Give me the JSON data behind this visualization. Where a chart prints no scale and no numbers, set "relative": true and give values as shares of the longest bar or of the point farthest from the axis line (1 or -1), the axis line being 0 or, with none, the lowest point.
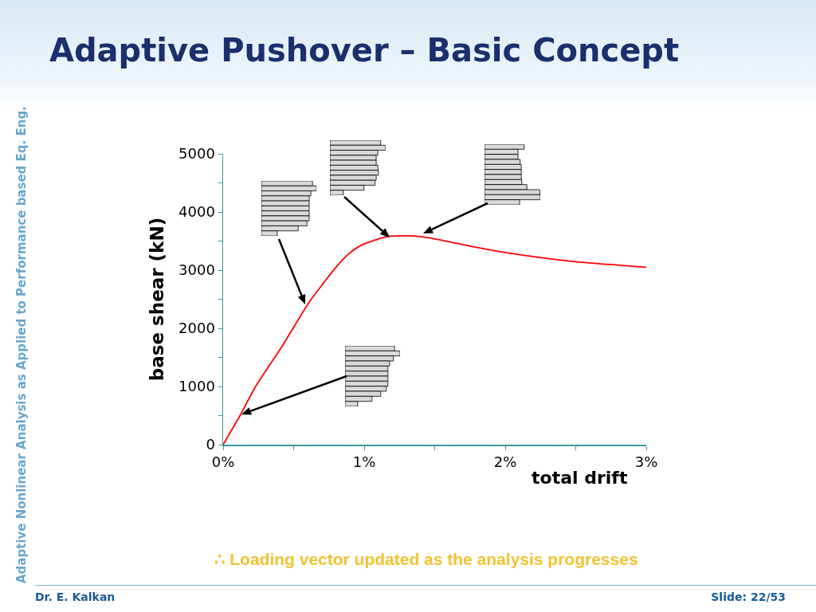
{
  "chart_data": [
    {
      "type": "line",
      "title": "Adaptive Pushover – Basic Concept",
      "xlabel": "total drift",
      "ylabel": "base shear (kN)",
      "x": [
        0,
        0.06,
        0.12,
        0.23,
        0.42,
        0.61,
        0.8,
        0.89,
        0.98,
        1.08,
        1.17,
        1.33,
        1.45,
        1.78,
        2.01,
        2.48,
        3.0
      ],
      "series": [
        {
          "color": "#ff0000",
          "values": [
            0,
            250,
            500,
            1000,
            1700,
            2450,
            3050,
            3280,
            3430,
            3520,
            3580,
            3590,
            3560,
            3400,
            3300,
            3150,
            3050
          ]
        }
      ],
      "xlim": [
        0,
        3
      ],
      "xticks": [
        {
          "value": 0,
          "label": "0%"
        },
        {
          "value": 0.5,
          "label": null
        },
        {
          "value": 1,
          "label": "1%"
        },
        {
          "value": 1.5,
          "label": null
        },
        {
          "value": 2,
          "label": "2%"
        },
        {
          "value": 2.5,
          "label": null
        },
        {
          "value": 3,
          "label": "3%"
        }
      ],
      "ylim": [
        0,
        5000
      ],
      "yticks": [
        0,
        {
          "value": 500,
          "label": null
        },
        1000,
        {
          "value": 1500,
          "label": null
        },
        2000,
        {
          "value": 2500,
          "label": null
        },
        3000,
        {
          "value": 3500,
          "label": null
        },
        4000,
        {
          "value": 4500,
          "label": null
        },
        5000
      ],
      "grid": false,
      "marker": "none",
      "line_style": "solid",
      "annotations": [
        "Adaptive Nonlinear Analysis as Applied to Performance based Eq. Eng.",
        "∴ Loading vector updated as the analysis progresses",
        "Dr. E. Kalkan",
        "Slide: 22/53"
      ]
    },
    {
      "type": "bar",
      "orientation": "horizontal",
      "relative": true,
      "color": "#d9d9d9",
      "categories": [
        null,
        null,
        null,
        null,
        null,
        null,
        null,
        null,
        null,
        null,
        null
      ],
      "values": [
        0.91,
        1,
        0.86,
        0.83,
        0.83,
        0.86,
        0.87,
        0.83,
        0.81,
        0.61,
        0.24
      ]
    },
    {
      "type": "bar",
      "orientation": "horizontal",
      "relative": true,
      "color": "#d9d9d9",
      "categories": [
        null,
        null,
        null,
        null,
        null,
        null,
        null,
        null,
        null,
        null,
        null,
        null
      ],
      "values": [
        0.71,
        0.6,
        0.6,
        0.64,
        0.66,
        0.66,
        0.66,
        0.67,
        0.76,
        0.99,
        1,
        0.63
      ]
    },
    {
      "type": "bar",
      "orientation": "horizontal",
      "relative": true,
      "color": "#d9d9d9",
      "categories": [
        null,
        null,
        null,
        null,
        null,
        null,
        null,
        null,
        null,
        null,
        null
      ],
      "values": [
        0.93,
        1,
        0.9,
        0.87,
        0.87,
        0.87,
        0.87,
        0.87,
        0.83,
        0.67,
        0.29
      ]
    },
    {
      "type": "bar",
      "orientation": "horizontal",
      "relative": true,
      "color": "#d9d9d9",
      "categories": [
        null,
        null,
        null,
        null,
        null,
        null,
        null,
        null,
        null,
        null,
        null,
        null
      ],
      "values": [
        0.9,
        1,
        0.88,
        0.81,
        0.78,
        0.78,
        0.78,
        0.78,
        0.75,
        0.65,
        0.49,
        0.23
      ]
    }
  ]
}
